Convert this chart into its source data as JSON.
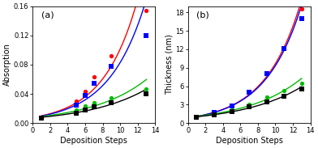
{
  "panel_a": {
    "title": "(a)",
    "ylabel": "Absorption",
    "xlabel": "Deposition Steps",
    "xlim": [
      0,
      14
    ],
    "ylim": [
      0.0,
      0.16
    ],
    "yticks": [
      0.0,
      0.04,
      0.08,
      0.12,
      0.16
    ],
    "xticks": [
      0,
      2,
      4,
      6,
      8,
      10,
      12,
      14
    ],
    "series": [
      {
        "color": "#ff0000",
        "marker": "o",
        "x": [
          1,
          5,
          6,
          7,
          9,
          13
        ],
        "y": [
          0.007,
          0.03,
          0.043,
          0.063,
          0.092,
          0.154
        ]
      },
      {
        "color": "#0000ff",
        "marker": "s",
        "x": [
          1,
          5,
          6,
          7,
          9,
          13
        ],
        "y": [
          0.007,
          0.025,
          0.038,
          0.055,
          0.078,
          0.12
        ]
      },
      {
        "color": "#00bb00",
        "marker": "o",
        "x": [
          1,
          5,
          6,
          7,
          9,
          13
        ],
        "y": [
          0.007,
          0.018,
          0.023,
          0.028,
          0.035,
          0.047
        ]
      },
      {
        "color": "#000000",
        "marker": "s",
        "x": [
          1,
          5,
          6,
          7,
          9,
          13
        ],
        "y": [
          0.007,
          0.014,
          0.018,
          0.022,
          0.028,
          0.04
        ]
      }
    ]
  },
  "panel_b": {
    "title": "(b)",
    "ylabel": "Thickness (nm)",
    "xlabel": "Deposition Steps",
    "xlim": [
      0,
      14
    ],
    "ylim": [
      0,
      19
    ],
    "yticks": [
      0,
      3,
      6,
      9,
      12,
      15,
      18
    ],
    "xticks": [
      0,
      2,
      4,
      6,
      8,
      10,
      12,
      14
    ],
    "series": [
      {
        "color": "#ff0000",
        "marker": "o",
        "x": [
          1,
          3,
          5,
          7,
          9,
          11,
          13
        ],
        "y": [
          1.0,
          1.8,
          2.8,
          5.0,
          8.2,
          12.2,
          18.5
        ]
      },
      {
        "color": "#0000ff",
        "marker": "s",
        "x": [
          1,
          3,
          5,
          7,
          9,
          11,
          13
        ],
        "y": [
          1.0,
          1.7,
          2.8,
          5.0,
          8.0,
          12.1,
          17.0
        ]
      },
      {
        "color": "#00bb00",
        "marker": "o",
        "x": [
          1,
          3,
          5,
          7,
          9,
          11,
          13
        ],
        "y": [
          1.0,
          1.5,
          2.1,
          3.1,
          4.2,
          5.3,
          6.5
        ]
      },
      {
        "color": "#000000",
        "marker": "s",
        "x": [
          1,
          3,
          5,
          7,
          9,
          11,
          13
        ],
        "y": [
          1.0,
          1.3,
          1.9,
          2.6,
          3.4,
          4.4,
          5.6
        ]
      }
    ]
  },
  "background_color": "#ffffff",
  "markersize": 3.8,
  "linewidth": 1.0,
  "title_fontsize": 8,
  "label_fontsize": 7,
  "tick_fontsize": 6
}
